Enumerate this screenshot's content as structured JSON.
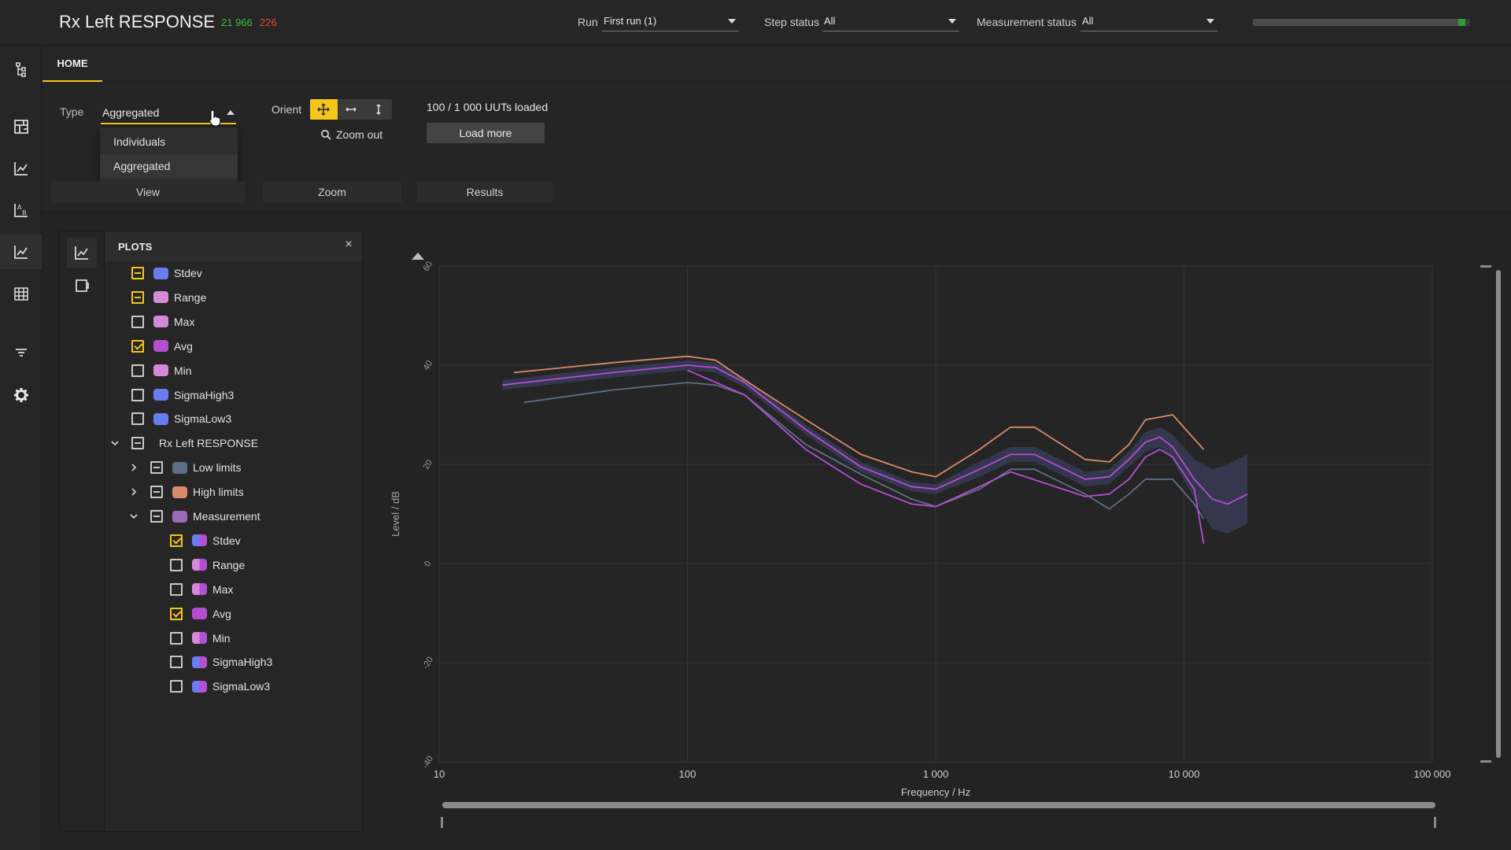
{
  "header": {
    "title": "Rx Left RESPONSE",
    "count_pass": "21 966",
    "count_fail": "226",
    "run_label": "Run",
    "run_value": "First run (1)",
    "step_status_label": "Step status",
    "step_status_value": "All",
    "measurement_status_label": "Measurement status",
    "measurement_status_value": "All",
    "progress_fraction": 0.97,
    "colors": {
      "pass": "#3cbf4a",
      "fail": "#e0463a",
      "accent": "#f5c518"
    }
  },
  "rail": {
    "icons": [
      "hierarchy-icon",
      "dashboard-icon",
      "line-chart-icon",
      "ab-compare-icon",
      "line-chart-active-icon",
      "table-icon",
      "filter-icon",
      "settings-icon"
    ]
  },
  "tabs": {
    "home": "HOME"
  },
  "ribbon": {
    "type_label": "Type",
    "type_value": "Aggregated",
    "type_options": [
      "Individuals",
      "Aggregated"
    ],
    "orient_label": "Orient",
    "zoom_out": "Zoom out",
    "uuts_loaded": "100 / 1 000 UUTs loaded",
    "load_more": "Load more",
    "groups": [
      "View",
      "Zoom",
      "Results"
    ]
  },
  "panel": {
    "title": "PLOTS",
    "close": "×",
    "items": [
      {
        "label": "Stdev",
        "state": "partial",
        "color": "#6a7df0",
        "depth": 0
      },
      {
        "label": "Range",
        "state": "partial",
        "color": "#d48ad8",
        "depth": 0
      },
      {
        "label": "Max",
        "state": "off",
        "color": "#d48ad8",
        "depth": 0
      },
      {
        "label": "Avg",
        "state": "on",
        "color": "#b44ed4",
        "depth": 0
      },
      {
        "label": "Min",
        "state": "off",
        "color": "#d48ad8",
        "depth": 0
      },
      {
        "label": "SigmaHigh3",
        "state": "off",
        "color": "#6a7df0",
        "depth": 0
      },
      {
        "label": "SigmaLow3",
        "state": "off",
        "color": "#6a7df0",
        "depth": 0
      },
      {
        "label": "Rx Left RESPONSE",
        "state": "partial-w",
        "color": "",
        "depth": 0,
        "chevron": "down"
      },
      {
        "label": "Low limits",
        "state": "partial-w",
        "color": "#5d6f86",
        "depth": 1,
        "chevron": "right"
      },
      {
        "label": "High limits",
        "state": "partial-w",
        "color": "#d88a6a",
        "depth": 1,
        "chevron": "right"
      },
      {
        "label": "Measurement",
        "state": "partial-w",
        "color": "#9a6ab8",
        "depth": 1,
        "chevron": "down"
      },
      {
        "label": "Stdev",
        "state": "on",
        "color": "#6a7df0",
        "color2": "#b44ed4",
        "depth": 2
      },
      {
        "label": "Range",
        "state": "off",
        "color": "#d48ad8",
        "color2": "#b44ed4",
        "depth": 2
      },
      {
        "label": "Max",
        "state": "off",
        "color": "#d48ad8",
        "color2": "#b44ed4",
        "depth": 2
      },
      {
        "label": "Avg",
        "state": "on",
        "color": "#b44ed4",
        "color2": "#b44ed4",
        "depth": 2
      },
      {
        "label": "Min",
        "state": "off",
        "color": "#d48ad8",
        "color2": "#b44ed4",
        "depth": 2
      },
      {
        "label": "SigmaHigh3",
        "state": "off",
        "color": "#6a7df0",
        "color2": "#b44ed4",
        "depth": 2
      },
      {
        "label": "SigmaLow3",
        "state": "off",
        "color": "#6a7df0",
        "color2": "#b44ed4",
        "depth": 2
      }
    ]
  },
  "chart_data": {
    "type": "line",
    "xlabel": "Frequency / Hz",
    "ylabel": "Level / dB",
    "xscale": "log",
    "xlim": [
      10,
      100000
    ],
    "ylim": [
      -40,
      60
    ],
    "xticks": [
      "10",
      "100",
      "1 000",
      "10 000",
      "100 000"
    ],
    "yticks": [
      "60",
      "40",
      "20",
      "0",
      "-20",
      "-40"
    ],
    "grid": true,
    "series": [
      {
        "key": "high_limit",
        "color": "#d88a6a",
        "points": [
          [
            20,
            38.5
          ],
          [
            50,
            40.5
          ],
          [
            100,
            41.8
          ],
          [
            130,
            41
          ],
          [
            170,
            37
          ],
          [
            300,
            29
          ],
          [
            500,
            22
          ],
          [
            800,
            18.5
          ],
          [
            1000,
            17.5
          ],
          [
            1500,
            23
          ],
          [
            2000,
            27.5
          ],
          [
            2500,
            27.5
          ],
          [
            4000,
            21
          ],
          [
            5000,
            20.5
          ],
          [
            6000,
            24
          ],
          [
            7000,
            29
          ],
          [
            9000,
            30
          ],
          [
            12000,
            23
          ]
        ]
      },
      {
        "key": "low_limit",
        "color": "#5d6f86",
        "points": [
          [
            22,
            32.5
          ],
          [
            50,
            35
          ],
          [
            100,
            36.5
          ],
          [
            130,
            36
          ],
          [
            170,
            34
          ],
          [
            300,
            24
          ],
          [
            500,
            18
          ],
          [
            800,
            13
          ],
          [
            1000,
            11.5
          ],
          [
            1500,
            15
          ],
          [
            2000,
            19
          ],
          [
            2500,
            19
          ],
          [
            4000,
            14
          ],
          [
            5000,
            11
          ],
          [
            6000,
            14
          ],
          [
            7000,
            17
          ],
          [
            9000,
            17
          ],
          [
            11000,
            12
          ],
          [
            12000,
            9
          ]
        ]
      },
      {
        "key": "avg",
        "color": "#b44ed4",
        "points": [
          [
            18,
            36
          ],
          [
            50,
            38.5
          ],
          [
            100,
            40
          ],
          [
            130,
            39.5
          ],
          [
            170,
            36.5
          ],
          [
            300,
            27
          ],
          [
            500,
            19.5
          ],
          [
            800,
            15.5
          ],
          [
            1000,
            15
          ],
          [
            1500,
            19
          ],
          [
            2000,
            22
          ],
          [
            2500,
            22
          ],
          [
            4000,
            17
          ],
          [
            5000,
            17.5
          ],
          [
            6000,
            21
          ],
          [
            7000,
            24.5
          ],
          [
            8000,
            25.5
          ],
          [
            9000,
            23.5
          ],
          [
            11000,
            17
          ],
          [
            13000,
            13
          ],
          [
            15000,
            12
          ],
          [
            18000,
            14
          ]
        ]
      },
      {
        "key": "stdev_upper",
        "color": "#3d4466",
        "points": [
          [
            18,
            37
          ],
          [
            50,
            39.5
          ],
          [
            100,
            41
          ],
          [
            130,
            40.5
          ],
          [
            170,
            37.5
          ],
          [
            300,
            28
          ],
          [
            500,
            20.5
          ],
          [
            800,
            16.5
          ],
          [
            1000,
            16
          ],
          [
            1500,
            20.5
          ],
          [
            2000,
            23.5
          ],
          [
            2500,
            23.5
          ],
          [
            4000,
            18.5
          ],
          [
            5000,
            19
          ],
          [
            6000,
            22.5
          ],
          [
            7000,
            26.5
          ],
          [
            8000,
            27.5
          ],
          [
            9000,
            26
          ],
          [
            11000,
            21
          ],
          [
            13000,
            19
          ],
          [
            15000,
            20
          ],
          [
            18000,
            22
          ]
        ]
      },
      {
        "key": "stdev_lower",
        "color": "#3d4466",
        "points": [
          [
            18,
            35
          ],
          [
            50,
            37.5
          ],
          [
            100,
            39
          ],
          [
            130,
            38.5
          ],
          [
            170,
            35.5
          ],
          [
            300,
            26
          ],
          [
            500,
            18.5
          ],
          [
            800,
            14.5
          ],
          [
            1000,
            14
          ],
          [
            1500,
            17.5
          ],
          [
            2000,
            20.5
          ],
          [
            2500,
            20.5
          ],
          [
            4000,
            15.5
          ],
          [
            5000,
            16
          ],
          [
            6000,
            19.5
          ],
          [
            7000,
            22.5
          ],
          [
            8000,
            23.5
          ],
          [
            9000,
            21
          ],
          [
            11000,
            13
          ],
          [
            13000,
            7
          ],
          [
            15000,
            6
          ],
          [
            18000,
            8
          ]
        ]
      },
      {
        "key": "min",
        "color": "#b44ed4",
        "points": [
          [
            100,
            39
          ],
          [
            170,
            34
          ],
          [
            300,
            23
          ],
          [
            500,
            16
          ],
          [
            800,
            12
          ],
          [
            1000,
            11.5
          ],
          [
            1500,
            15.5
          ],
          [
            2000,
            18.5
          ],
          [
            4000,
            13.5
          ],
          [
            5000,
            14
          ],
          [
            6000,
            17
          ],
          [
            7000,
            21.5
          ],
          [
            8000,
            23
          ],
          [
            9000,
            21.5
          ],
          [
            11000,
            15
          ],
          [
            12000,
            4
          ]
        ]
      }
    ]
  }
}
